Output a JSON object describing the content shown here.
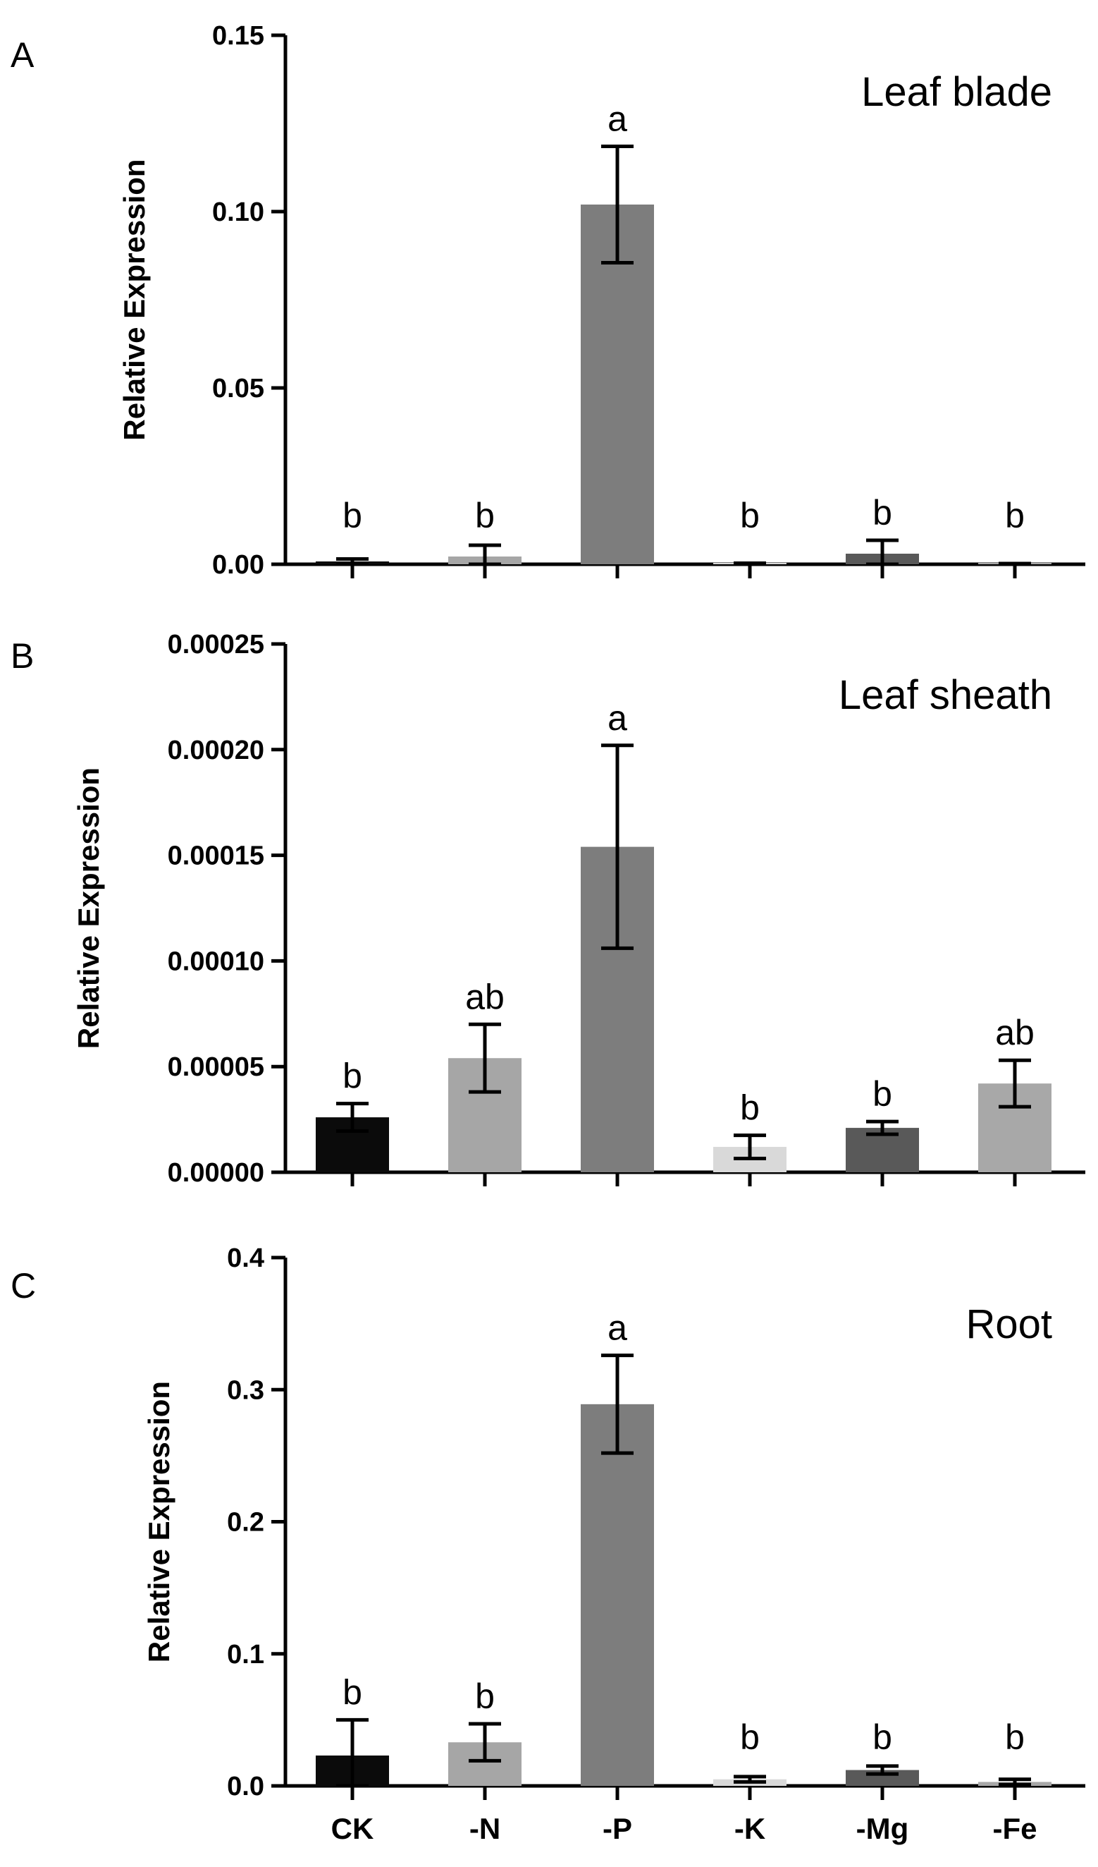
{
  "chart_data": [
    {
      "type": "bar",
      "panel": "A",
      "tissue": "Leaf blade",
      "ylabel": "Relative Expression",
      "categories": [
        "CK",
        "-N",
        "-P",
        "-K",
        "-Mg",
        "-Fe"
      ],
      "values": [
        0.0008,
        0.0022,
        0.102,
        0.0002,
        0.003,
        0.0001
      ],
      "errors": [
        0.0007,
        0.0032,
        0.0165,
        0.0001,
        0.0038,
        0.0001
      ],
      "significance": [
        "b",
        "b",
        "a",
        "b",
        "b",
        "b"
      ],
      "ylim": [
        0,
        0.15
      ],
      "yticks": [
        0.0,
        0.05,
        0.1,
        0.15
      ],
      "ytick_labels": [
        "0.00",
        "0.05",
        "0.10",
        "0.15"
      ],
      "bar_colors": [
        "#0b0b0b",
        "#a6a6a6",
        "#7d7d7d",
        "#d9d9d9",
        "#595959",
        "#a8a8a8"
      ]
    },
    {
      "type": "bar",
      "panel": "B",
      "tissue": "Leaf sheath",
      "ylabel": "Relative Expression",
      "categories": [
        "CK",
        "-N",
        "-P",
        "-K",
        "-Mg",
        "-Fe"
      ],
      "values": [
        2.6e-05,
        5.4e-05,
        0.000154,
        1.2e-05,
        2.1e-05,
        4.2e-05
      ],
      "errors": [
        6.5e-06,
        1.6e-05,
        4.8e-05,
        5.5e-06,
        3e-06,
        1.1e-05
      ],
      "significance": [
        "b",
        "ab",
        "a",
        "b",
        "b",
        "ab"
      ],
      "ylim": [
        0,
        0.00025
      ],
      "yticks": [
        0,
        5e-05,
        0.0001,
        0.00015,
        0.0002,
        0.00025
      ],
      "ytick_labels": [
        "0.00000",
        "0.00005",
        "0.00010",
        "0.00015",
        "0.00020",
        "0.00025"
      ],
      "bar_colors": [
        "#0b0b0b",
        "#a6a6a6",
        "#7d7d7d",
        "#d9d9d9",
        "#595959",
        "#a8a8a8"
      ]
    },
    {
      "type": "bar",
      "panel": "C",
      "tissue": "Root",
      "ylabel": "Relative Expression",
      "categories": [
        "CK",
        "-N",
        "-P",
        "-K",
        "-Mg",
        "-Fe"
      ],
      "values": [
        0.023,
        0.033,
        0.289,
        0.005,
        0.012,
        0.003
      ],
      "errors": [
        0.027,
        0.014,
        0.037,
        0.002,
        0.003,
        0.002
      ],
      "significance": [
        "b",
        "b",
        "a",
        "b",
        "b",
        "b"
      ],
      "ylim": [
        0,
        0.4
      ],
      "yticks": [
        0.0,
        0.1,
        0.2,
        0.3,
        0.4
      ],
      "ytick_labels": [
        "0.0",
        "0.1",
        "0.2",
        "0.3",
        "0.4"
      ],
      "bar_colors": [
        "#0b0b0b",
        "#a6a6a6",
        "#7d7d7d",
        "#d9d9d9",
        "#595959",
        "#a8a8a8"
      ],
      "show_x_labels": true
    }
  ]
}
